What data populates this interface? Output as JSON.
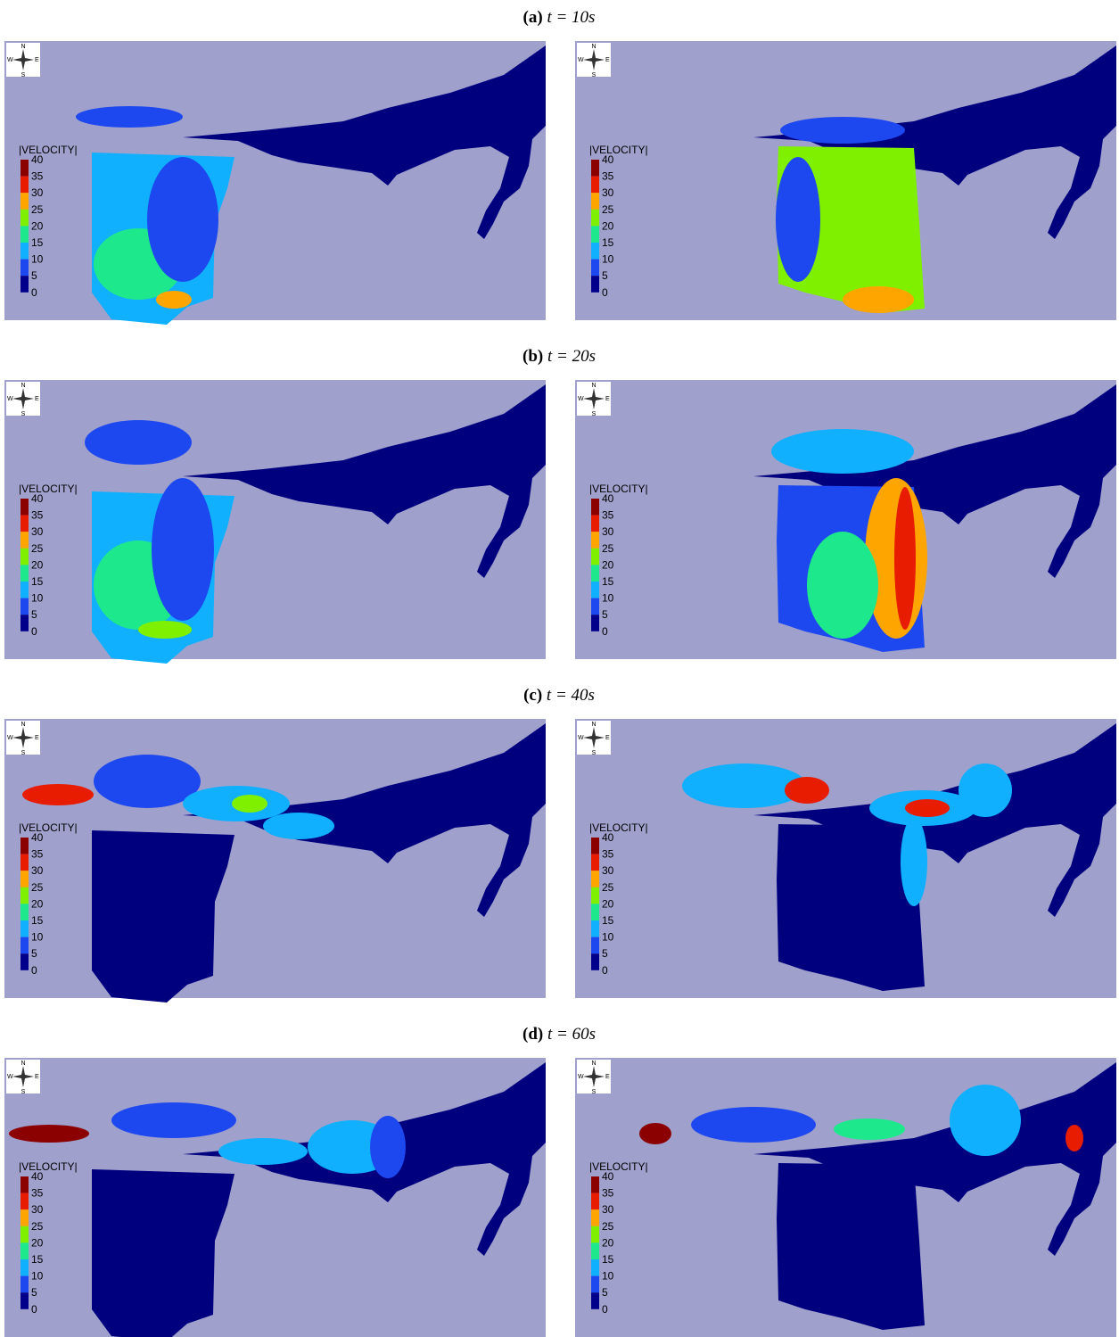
{
  "rows": [
    {
      "label": "(a)",
      "caption": "t = 10s"
    },
    {
      "label": "(b)",
      "caption": "t = 20s"
    },
    {
      "label": "(c)",
      "caption": "t = 40s"
    },
    {
      "label": "(d)",
      "caption": "t = 60s"
    }
  ],
  "compass": {
    "north": "N",
    "south": "S",
    "west": "W",
    "east": "E"
  },
  "legend": {
    "title": "|VELOCITY|",
    "ticks": [
      40,
      35,
      30,
      25,
      20,
      15,
      10,
      5,
      0
    ],
    "colors": [
      "#8b0000",
      "#e81c00",
      "#ffa500",
      "#7ff000",
      "#1ee88c",
      "#10b0ff",
      "#1d48f0",
      "#00008b"
    ]
  }
}
